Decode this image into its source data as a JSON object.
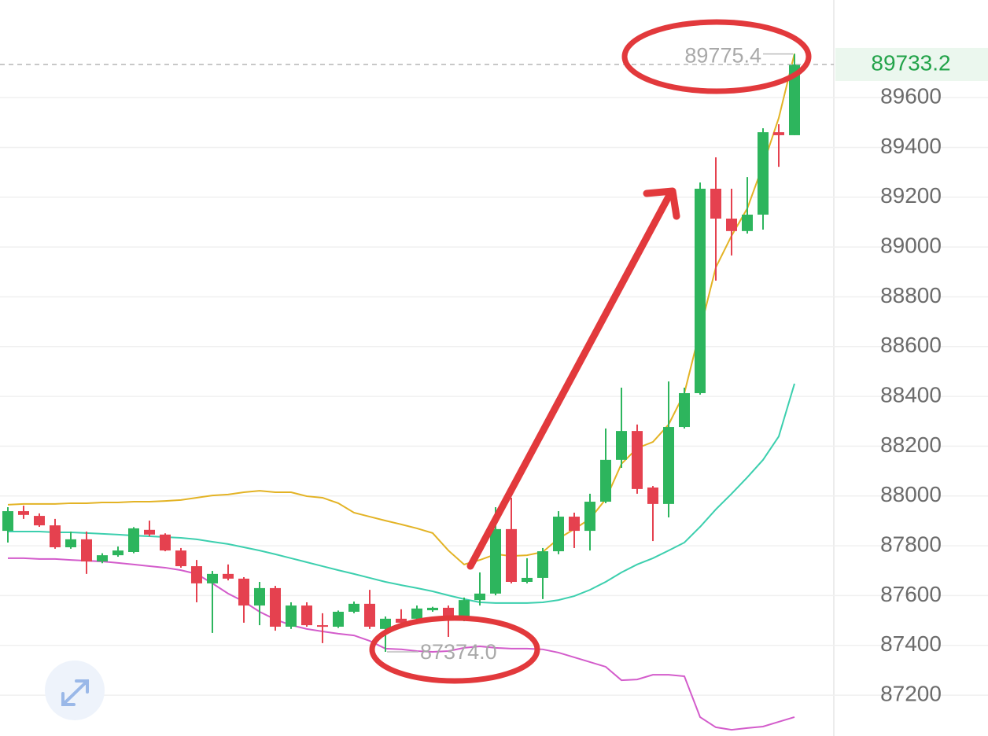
{
  "chart_data": {
    "type": "candlestick",
    "up_color": "#2db55d",
    "down_color": "#e5414f",
    "ylim": [
      87036,
      89992
    ],
    "yticks": [
      87200,
      87400,
      87600,
      87800,
      88000,
      88200,
      88400,
      88600,
      88800,
      89000,
      89200,
      89400,
      89600
    ],
    "grid": true,
    "open": [
      87860,
      87939,
      87920,
      87882,
      87794,
      87826,
      87737,
      87762,
      87775,
      87864,
      87845,
      87781,
      87718,
      87649,
      87687,
      87668,
      87560,
      87630,
      87475,
      87560,
      87481,
      87475,
      87535,
      87567,
      87466,
      87507,
      87507,
      87541,
      87551,
      87516,
      87582,
      87608,
      87867,
      87655,
      87671,
      87778,
      87917,
      87860,
      87977,
      88145,
      88261,
      88034,
      87968,
      88277,
      88413,
      89234,
      89114,
      89064,
      89130,
      89461,
      89449
    ],
    "high": [
      87955,
      87961,
      87930,
      87908,
      87857,
      87857,
      87770,
      87797,
      87875,
      87901,
      87850,
      87791,
      87743,
      87699,
      87725,
      87674,
      87655,
      87639,
      87573,
      87573,
      87529,
      87540,
      87576,
      87623,
      87516,
      87545,
      87560,
      87555,
      87560,
      87592,
      87693,
      87955,
      87993,
      87750,
      87791,
      87939,
      87933,
      88009,
      88271,
      88435,
      88287,
      88040,
      88460,
      88435,
      89259,
      89360,
      89234,
      89281,
      89477,
      89493,
      89775.4
    ],
    "low": [
      87813,
      87908,
      87876,
      87788,
      87788,
      87687,
      87730,
      87756,
      87770,
      87838,
      87778,
      87712,
      87573,
      87450,
      87661,
      87491,
      87481,
      87459,
      87466,
      87475,
      87409,
      87470,
      87529,
      87466,
      87374,
      87481,
      87497,
      87535,
      87434,
      87497,
      87560,
      87601,
      87649,
      87649,
      87586,
      87766,
      87791,
      87781,
      87971,
      88113,
      88009,
      87819,
      87914,
      88271,
      88407,
      88865,
      88966,
      89054,
      89070,
      89322,
      89449
    ],
    "close": [
      87939,
      87924,
      87882,
      87794,
      87826,
      87737,
      87762,
      87781,
      87870,
      87845,
      87781,
      87718,
      87649,
      87687,
      87668,
      87560,
      87630,
      87475,
      87560,
      87481,
      87475,
      87535,
      87567,
      87475,
      87507,
      87491,
      87548,
      87551,
      87513,
      87582,
      87608,
      87867,
      87655,
      87671,
      87778,
      87917,
      87860,
      87977,
      88145,
      88261,
      88028,
      87968,
      88277,
      88413,
      89234,
      89114,
      89064,
      89130,
      89461,
      89449,
      89733.2
    ],
    "lines": [
      {
        "color": "#e3b325",
        "values": [
          87965,
          87968,
          87968,
          87968,
          87971,
          87971,
          87974,
          87974,
          87977,
          87977,
          87980,
          87984,
          87993,
          88002,
          88006,
          88015,
          88021,
          88015,
          88015,
          87999,
          87993,
          87971,
          87933,
          87917,
          87901,
          87886,
          87870,
          87851,
          87781,
          87725,
          87743,
          87766,
          87759,
          87762,
          87775,
          87829,
          87867,
          87908,
          87987,
          88129,
          88192,
          88217,
          88287,
          88413,
          88666,
          88918,
          89045,
          89155,
          89329,
          89518,
          89777
        ]
      },
      {
        "color": "#3ccfae",
        "values": [
          87857,
          87857,
          87857,
          87854,
          87854,
          87851,
          87848,
          87845,
          87841,
          87838,
          87835,
          87832,
          87826,
          87816,
          87807,
          87794,
          87781,
          87766,
          87750,
          87734,
          87718,
          87702,
          87687,
          87671,
          87655,
          87642,
          87630,
          87617,
          87601,
          87586,
          87573,
          87570,
          87570,
          87570,
          87573,
          87582,
          87598,
          87623,
          87655,
          87693,
          87725,
          87750,
          87781,
          87813,
          87876,
          87946,
          88009,
          88075,
          88145,
          88239,
          88451
        ]
      },
      {
        "color": "#d35ccb",
        "values": [
          87750,
          87750,
          87747,
          87747,
          87743,
          87740,
          87737,
          87731,
          87725,
          87718,
          87712,
          87702,
          87687,
          87649,
          87608,
          87576,
          87535,
          87504,
          87481,
          87466,
          87456,
          87447,
          87440,
          87418,
          87387,
          87384,
          87377,
          87374,
          87377,
          87390,
          87396,
          87390,
          87387,
          87387,
          87384,
          87371,
          87352,
          87333,
          87314,
          87260,
          87263,
          87282,
          87282,
          87276,
          87112,
          87071,
          87061,
          87068,
          87074,
          87093,
          87112
        ]
      }
    ],
    "annotations": [
      {
        "text": "89775.4"
      },
      {
        "text": "87374.0"
      }
    ]
  }
}
